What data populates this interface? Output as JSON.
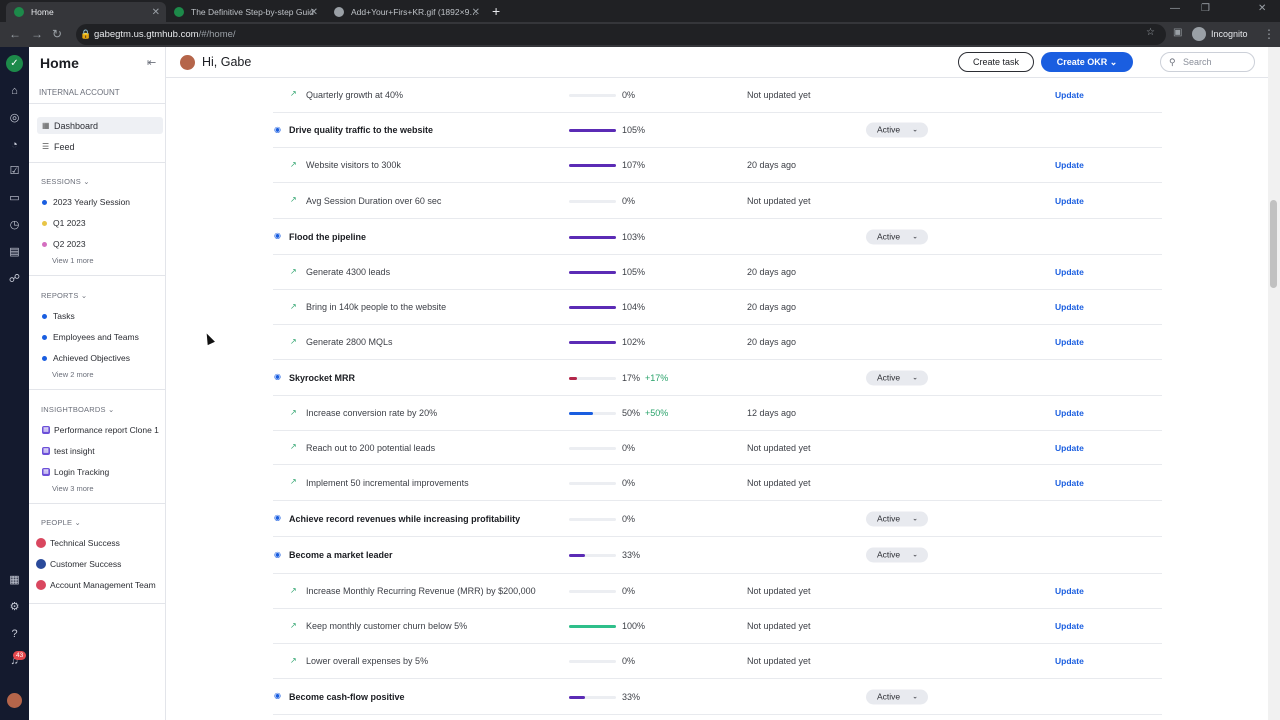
{
  "browser": {
    "tabs": [
      {
        "title": "Home",
        "active": true,
        "color": "#1d8a4a"
      },
      {
        "title": "The Definitive Step-by-step Guid",
        "active": false,
        "color": "#1d8a4a"
      },
      {
        "title": "Add+Your+Firs+KR.gif (1892×9…",
        "active": false,
        "color": "#9aa0a6"
      }
    ],
    "url_host": "gabegtm.us.gtmhub.com",
    "url_path": "/#/home/",
    "incognito_label": "Incognito"
  },
  "rail": {
    "notification_count": "43"
  },
  "sidebar": {
    "title": "Home",
    "account": "INTERNAL ACCOUNT",
    "nav": [
      {
        "label": "Dashboard"
      },
      {
        "label": "Feed"
      }
    ],
    "sessions": {
      "heading": "SESSIONS",
      "items": [
        {
          "label": "2023 Yearly Session",
          "color": "#1a5ee0"
        },
        {
          "label": "Q1 2023",
          "color": "#e8c547"
        },
        {
          "label": "Q2 2023",
          "color": "#d46fc0"
        }
      ],
      "more": "View 1 more"
    },
    "reports": {
      "heading": "REPORTS",
      "items": [
        {
          "label": "Tasks"
        },
        {
          "label": "Employees and Teams"
        },
        {
          "label": "Achieved Objectives"
        }
      ],
      "more": "View 2 more"
    },
    "insightboards": {
      "heading": "INSIGHTBOARDS",
      "items": [
        {
          "label": "Performance report Clone 1"
        },
        {
          "label": "test insight"
        },
        {
          "label": "Login Tracking"
        }
      ],
      "more": "View 3 more"
    },
    "people": {
      "heading": "PEOPLE",
      "items": [
        {
          "label": "Technical Success"
        },
        {
          "label": "Customer Success"
        },
        {
          "label": "Account Management Team"
        }
      ]
    }
  },
  "header": {
    "greeting": "Hi, Gabe",
    "create_task": "Create task",
    "create_okr": "Create OKR",
    "search_placeholder": "Search"
  },
  "okrs": [
    {
      "kind": "kr",
      "name": "Quarterly growth at 40%",
      "progress": 0,
      "pct": "0%",
      "updated": "Not updated yet",
      "action": "Update"
    },
    {
      "kind": "obj",
      "name": "Drive quality traffic to the website",
      "progress": 105,
      "pct": "105%",
      "status": "Active"
    },
    {
      "kind": "kr",
      "name": "Website visitors to 300k",
      "progress": 107,
      "pct": "107%",
      "updated": "20 days ago",
      "action": "Update"
    },
    {
      "kind": "kr",
      "name": "Avg Session Duration over 60 sec",
      "progress": 0,
      "pct": "0%",
      "updated": "Not updated yet",
      "action": "Update"
    },
    {
      "kind": "obj",
      "name": "Flood the pipeline",
      "progress": 103,
      "pct": "103%",
      "status": "Active"
    },
    {
      "kind": "kr",
      "name": "Generate 4300 leads",
      "progress": 105,
      "pct": "105%",
      "updated": "20 days ago",
      "action": "Update"
    },
    {
      "kind": "kr",
      "name": "Bring in 140k people to the website",
      "progress": 104,
      "pct": "104%",
      "updated": "20 days ago",
      "action": "Update"
    },
    {
      "kind": "kr",
      "name": "Generate 2800 MQLs",
      "progress": 102,
      "pct": "102%",
      "updated": "20 days ago",
      "action": "Update"
    },
    {
      "kind": "obj",
      "name": "Skyrocket MRR",
      "progress": 17,
      "pct": "17%",
      "delta": "+17%",
      "status": "Active",
      "bar_color": "#b3264a"
    },
    {
      "kind": "kr",
      "name": "Increase conversion rate by 20%",
      "progress": 50,
      "pct": "50%",
      "delta": "+50%",
      "updated": "12 days ago",
      "action": "Update",
      "bar_color": "#1a5ee0"
    },
    {
      "kind": "kr",
      "name": "Reach out to 200 potential leads",
      "progress": 0,
      "pct": "0%",
      "updated": "Not updated yet",
      "action": "Update"
    },
    {
      "kind": "kr",
      "name": "Implement 50 incremental improvements",
      "progress": 0,
      "pct": "0%",
      "updated": "Not updated yet",
      "action": "Update"
    },
    {
      "kind": "obj",
      "name": "Achieve record revenues while increasing profitability",
      "progress": 0,
      "pct": "0%",
      "status": "Active"
    },
    {
      "kind": "obj",
      "name": "Become a market leader",
      "progress": 33,
      "pct": "33%",
      "status": "Active"
    },
    {
      "kind": "kr",
      "name": "Increase Monthly Recurring Revenue (MRR) by $200,000",
      "progress": 0,
      "pct": "0%",
      "updated": "Not updated yet",
      "action": "Update"
    },
    {
      "kind": "kr",
      "name": "Keep monthly customer churn below 5%",
      "progress": 100,
      "pct": "100%",
      "updated": "Not updated yet",
      "action": "Update",
      "bar_color": "#2fbf8a"
    },
    {
      "kind": "kr",
      "name": "Lower overall expenses by 5%",
      "progress": 0,
      "pct": "0%",
      "updated": "Not updated yet",
      "action": "Update"
    },
    {
      "kind": "obj",
      "name": "Become cash-flow positive",
      "progress": 33,
      "pct": "33%",
      "status": "Active"
    }
  ],
  "colors": {
    "bar_default": "#5b2bb5",
    "accent": "#1a5ee0"
  }
}
